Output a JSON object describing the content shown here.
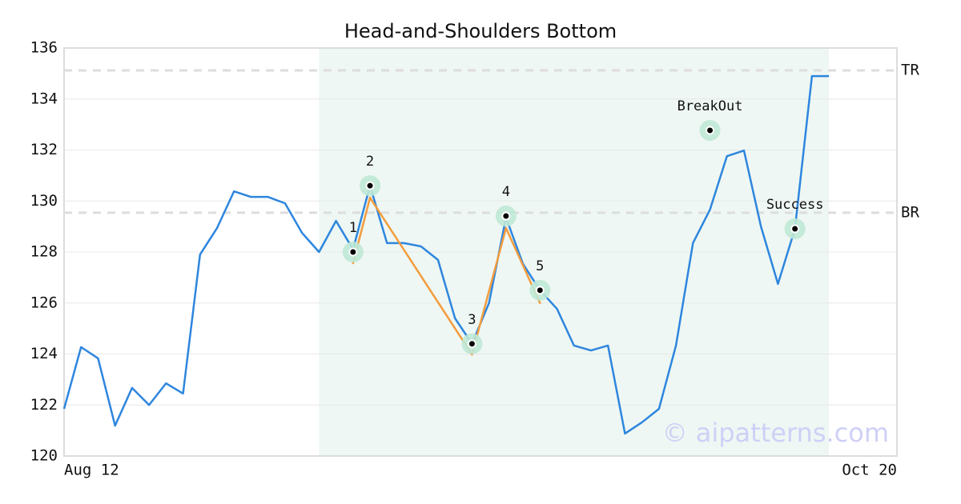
{
  "chart_data": {
    "type": "line",
    "title": "Head-and-Shoulders Bottom",
    "categories": [
      "Aug 12",
      null,
      null,
      null,
      null,
      null,
      null,
      null,
      null,
      null,
      null,
      null,
      null,
      null,
      null,
      null,
      null,
      null,
      null,
      null,
      null,
      null,
      null,
      null,
      null,
      null,
      null,
      null,
      null,
      null,
      null,
      null,
      null,
      null,
      null,
      null,
      null,
      null,
      null,
      null,
      null,
      null,
      null,
      null,
      null,
      null,
      null,
      null,
      null,
      "Oct 20"
    ],
    "series": [
      {
        "color": "#2e86de",
        "values": [
          121.85,
          124.27,
          123.83,
          121.19,
          122.67,
          122.0,
          122.85,
          122.45,
          127.9,
          128.94,
          130.38,
          130.16,
          130.16,
          129.91,
          128.75,
          128.0,
          129.22,
          128.1,
          130.6,
          128.35,
          128.35,
          128.22,
          127.69,
          125.4,
          124.4,
          126.0,
          129.35,
          127.53,
          126.5,
          125.77,
          124.33,
          124.14,
          124.33,
          120.88,
          121.32,
          121.85,
          124.33,
          128.35,
          129.66,
          131.76,
          131.98,
          129.0,
          126.75,
          128.91,
          134.9,
          134.9,
          null,
          null,
          null,
          null
        ]
      },
      {
        "color": "#f39c3d",
        "values": [
          null,
          null,
          null,
          null,
          null,
          null,
          null,
          null,
          null,
          null,
          null,
          null,
          null,
          null,
          null,
          null,
          null,
          127.56,
          130.13,
          null,
          null,
          null,
          null,
          null,
          123.98,
          null,
          128.94,
          null,
          126.0,
          null,
          null,
          null,
          null,
          null,
          null,
          null,
          null,
          null,
          null,
          null,
          null,
          null,
          null,
          null,
          null,
          null,
          null,
          null,
          null,
          null
        ]
      }
    ],
    "markers": {
      "values": [
        null,
        null,
        null,
        null,
        null,
        null,
        null,
        null,
        null,
        null,
        null,
        null,
        null,
        null,
        null,
        null,
        null,
        128.0,
        130.6,
        null,
        null,
        null,
        null,
        null,
        124.4,
        null,
        129.41,
        null,
        126.5,
        null,
        null,
        null,
        null,
        null,
        null,
        null,
        null,
        null,
        132.77,
        null,
        null,
        null,
        null,
        128.91,
        null,
        null,
        null,
        null,
        null,
        null
      ],
      "labels": [
        null,
        null,
        null,
        null,
        null,
        null,
        null,
        null,
        null,
        null,
        null,
        null,
        null,
        null,
        null,
        null,
        null,
        "1",
        "2",
        null,
        null,
        null,
        null,
        null,
        "3",
        null,
        "4",
        null,
        "5",
        null,
        null,
        null,
        null,
        null,
        null,
        null,
        null,
        null,
        "BreakOut",
        null,
        null,
        null,
        null,
        "Success",
        null,
        null,
        null,
        null,
        null,
        null
      ]
    },
    "highlight": {
      "start": 15,
      "end": 45,
      "color": "#eef7f3"
    },
    "hlines": [
      {
        "label": "TR",
        "value": 135.12
      },
      {
        "label": "BR",
        "value": 129.54
      }
    ],
    "ylim": [
      120,
      136
    ],
    "yticks": [
      120,
      122,
      124,
      126,
      128,
      130,
      132,
      134,
      136
    ],
    "grid": true,
    "watermark": "© aipatterns.com"
  }
}
